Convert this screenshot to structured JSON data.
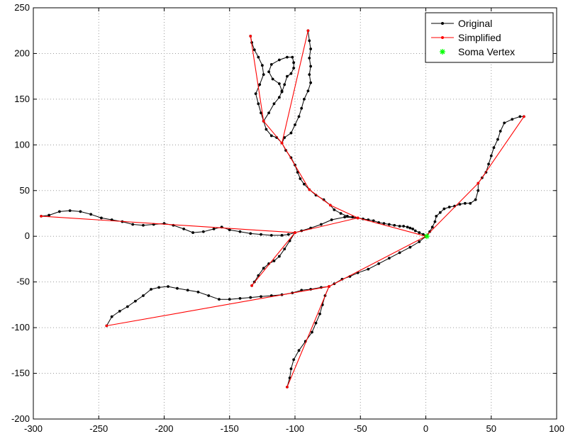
{
  "chart_data": {
    "type": "line",
    "title": "",
    "xlabel": "",
    "ylabel": "",
    "xlim": [
      -300,
      100
    ],
    "ylim": [
      -200,
      250
    ],
    "xticks": [
      -300,
      -250,
      -200,
      -150,
      -100,
      -50,
      0,
      50,
      100
    ],
    "yticks": [
      -200,
      -150,
      -100,
      -50,
      0,
      50,
      100,
      150,
      200,
      250
    ],
    "xtick_labels": [
      "-300",
      "-250",
      "-200",
      "-150",
      "-100",
      "-50",
      "0",
      "50",
      "100"
    ],
    "ytick_labels": [
      "-200",
      "-150",
      "-100",
      "-50",
      "0",
      "50",
      "100",
      "150",
      "200",
      "250"
    ],
    "grid": true,
    "legend_position": "top-right",
    "legend": [
      "Original",
      "Simplified",
      "Soma Vertex"
    ],
    "colors": {
      "original": "#000000",
      "simplified": "#ff0000",
      "soma": "#00ff00"
    },
    "series": [
      {
        "name": "Original",
        "color": "#000000",
        "branches": [
          [
            [
              0,
              0
            ],
            [
              -2,
              2
            ],
            [
              -5,
              4
            ],
            [
              -8,
              6
            ],
            [
              -10,
              8
            ],
            [
              -12,
              9
            ],
            [
              -14,
              10
            ],
            [
              -17,
              11
            ],
            [
              -20,
              11
            ],
            [
              -24,
              12
            ],
            [
              -28,
              13
            ],
            [
              -32,
              14
            ],
            [
              -36,
              15
            ],
            [
              -40,
              17
            ],
            [
              -44,
              18
            ],
            [
              -48,
              19
            ],
            [
              -52,
              20
            ],
            [
              -56,
              21
            ],
            [
              -60,
              22
            ],
            [
              -65,
              25
            ],
            [
              -70,
              29
            ],
            [
              -73,
              34
            ],
            [
              -78,
              40
            ],
            [
              -84,
              45
            ],
            [
              -89,
              51
            ],
            [
              -93,
              57
            ],
            [
              -96,
              63
            ],
            [
              -98,
              70
            ],
            [
              -100,
              78
            ],
            [
              -103,
              86
            ],
            [
              -107,
              94
            ],
            [
              -110,
              102
            ],
            [
              -114,
              108
            ],
            [
              -118,
              110
            ],
            [
              -122,
              117
            ],
            [
              -124,
              126
            ],
            [
              -126,
              135
            ],
            [
              -128,
              145
            ],
            [
              -130,
              156
            ],
            [
              -127,
              166
            ],
            [
              -124,
              177
            ],
            [
              -125,
              187
            ],
            [
              -128,
              196
            ],
            [
              -131,
              204
            ],
            [
              -133,
              212
            ],
            [
              -134,
              219
            ]
          ],
          [
            [
              -110,
              102
            ],
            [
              -108,
              108
            ],
            [
              -103,
              113
            ],
            [
              -100,
              122
            ],
            [
              -97,
              131
            ],
            [
              -95,
              140
            ],
            [
              -93,
              150
            ],
            [
              -90,
              159
            ],
            [
              -88,
              168
            ],
            [
              -89,
              177
            ],
            [
              -88,
              186
            ],
            [
              -89,
              195
            ],
            [
              -88,
              205
            ],
            [
              -89,
              214
            ],
            [
              -90,
              225
            ]
          ],
          [
            [
              -124,
              126
            ],
            [
              -120,
              135
            ],
            [
              -116,
              145
            ],
            [
              -112,
              152
            ],
            [
              -110,
              159
            ],
            [
              -112,
              167
            ],
            [
              -117,
              172
            ],
            [
              -120,
              180
            ],
            [
              -118,
              188
            ],
            [
              -112,
              193
            ],
            [
              -106,
              196
            ],
            [
              -102,
              196
            ],
            [
              -101,
              190
            ],
            [
              -101,
              184
            ],
            [
              -103,
              178
            ],
            [
              -106,
              175
            ],
            [
              -108,
              166
            ],
            [
              -110,
              158
            ]
          ],
          [
            [
              -52,
              20
            ],
            [
              -62,
              21
            ],
            [
              -72,
              18
            ],
            [
              -80,
              13
            ],
            [
              -88,
              9
            ],
            [
              -95,
              6
            ],
            [
              -100,
              4
            ],
            [
              -105,
              2
            ],
            [
              -110,
              1
            ],
            [
              -118,
              1
            ],
            [
              -126,
              2
            ],
            [
              -134,
              3
            ],
            [
              -142,
              5
            ],
            [
              -150,
              7
            ],
            [
              -156,
              10
            ],
            [
              -162,
              8
            ],
            [
              -170,
              5
            ],
            [
              -178,
              4
            ],
            [
              -185,
              8
            ],
            [
              -193,
              12
            ],
            [
              -200,
              14
            ],
            [
              -208,
              13
            ],
            [
              -216,
              12
            ],
            [
              -224,
              13
            ],
            [
              -232,
              16
            ],
            [
              -240,
              18
            ],
            [
              -248,
              20
            ],
            [
              -256,
              24
            ],
            [
              -264,
              27
            ],
            [
              -272,
              28
            ],
            [
              -280,
              27
            ],
            [
              -288,
              23
            ],
            [
              -294,
              22
            ]
          ],
          [
            [
              -100,
              4
            ],
            [
              -104,
              -5
            ],
            [
              -108,
              -14
            ],
            [
              -112,
              -22
            ],
            [
              -116,
              -27
            ],
            [
              -120,
              -30
            ],
            [
              -124,
              -35
            ],
            [
              -128,
              -43
            ],
            [
              -131,
              -50
            ],
            [
              -133,
              -54
            ]
          ],
          [
            [
              0,
              0
            ],
            [
              -5,
              -6
            ],
            [
              -12,
              -12
            ],
            [
              -20,
              -18
            ],
            [
              -28,
              -24
            ],
            [
              -36,
              -30
            ],
            [
              -44,
              -36
            ],
            [
              -52,
              -40
            ],
            [
              -58,
              -44
            ],
            [
              -64,
              -47
            ],
            [
              -70,
              -52
            ],
            [
              -74,
              -55
            ],
            [
              -80,
              -56
            ],
            [
              -88,
              -58
            ],
            [
              -95,
              -59
            ],
            [
              -102,
              -62
            ],
            [
              -110,
              -64
            ],
            [
              -118,
              -65
            ],
            [
              -126,
              -66
            ],
            [
              -134,
              -67
            ],
            [
              -142,
              -68
            ],
            [
              -150,
              -69
            ],
            [
              -158,
              -69
            ],
            [
              -166,
              -65
            ],
            [
              -174,
              -61
            ],
            [
              -182,
              -59
            ],
            [
              -190,
              -57
            ],
            [
              -197,
              -55
            ],
            [
              -204,
              -56
            ],
            [
              -210,
              -58
            ],
            [
              -216,
              -65
            ],
            [
              -222,
              -71
            ],
            [
              -228,
              -77
            ],
            [
              -234,
              -82
            ],
            [
              -240,
              -88
            ],
            [
              -244,
              -98
            ]
          ],
          [
            [
              -74,
              -55
            ],
            [
              -77,
              -65
            ],
            [
              -79,
              -75
            ],
            [
              -81,
              -85
            ],
            [
              -84,
              -95
            ],
            [
              -87,
              -105
            ],
            [
              -92,
              -115
            ],
            [
              -97,
              -125
            ],
            [
              -101,
              -135
            ],
            [
              -103,
              -145
            ],
            [
              -104,
              -155
            ],
            [
              -106,
              -165
            ]
          ],
          [
            [
              0,
              0
            ],
            [
              3,
              5
            ],
            [
              5,
              10
            ],
            [
              7,
              16
            ],
            [
              8,
              22
            ],
            [
              11,
              26
            ],
            [
              14,
              30
            ],
            [
              18,
              32
            ],
            [
              22,
              33
            ],
            [
              26,
              35
            ],
            [
              30,
              36
            ],
            [
              34,
              36
            ],
            [
              38,
              40
            ],
            [
              40,
              50
            ],
            [
              40,
              58
            ],
            [
              43,
              64
            ],
            [
              46,
              70
            ],
            [
              48,
              79
            ],
            [
              50,
              88
            ],
            [
              52,
              97
            ],
            [
              55,
              106
            ],
            [
              57,
              115
            ],
            [
              60,
              124
            ],
            [
              66,
              128
            ],
            [
              72,
              131
            ],
            [
              75,
              131
            ]
          ]
        ]
      },
      {
        "name": "Simplified",
        "color": "#ff0000",
        "branches": [
          [
            [
              0,
              0
            ],
            [
              -52,
              20
            ],
            [
              -73,
              34
            ],
            [
              -89,
              51
            ],
            [
              -110,
              102
            ],
            [
              -124,
              126
            ],
            [
              -134,
              219
            ]
          ],
          [
            [
              -110,
              102
            ],
            [
              -90,
              225
            ]
          ],
          [
            [
              -52,
              20
            ],
            [
              -100,
              4
            ],
            [
              -294,
              22
            ]
          ],
          [
            [
              -100,
              4
            ],
            [
              -133,
              -54
            ]
          ],
          [
            [
              0,
              0
            ],
            [
              -74,
              -55
            ],
            [
              -244,
              -98
            ]
          ],
          [
            [
              -74,
              -55
            ],
            [
              -106,
              -165
            ]
          ],
          [
            [
              0,
              0
            ],
            [
              40,
              58
            ],
            [
              75,
              131
            ]
          ]
        ]
      },
      {
        "name": "Soma Vertex",
        "color": "#00ff00",
        "points": [
          [
            0,
            0
          ]
        ]
      }
    ]
  }
}
